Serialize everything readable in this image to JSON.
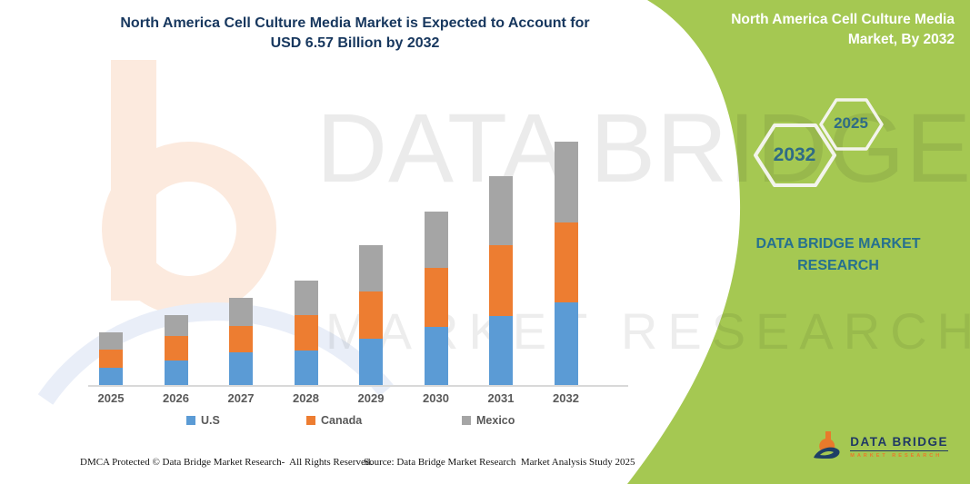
{
  "header": {
    "title": "North America Cell Culture Media Market is Expected to Account for USD 6.57 Billion by 2032"
  },
  "side_panel": {
    "title": "North America Cell Culture Media Market, By 2032",
    "hexagon_big": "2032",
    "hexagon_small": "2025",
    "brand_caption": "DATA BRIDGE MARKET RESEARCH",
    "panel_color": "#a5c852",
    "caption_color": "#26708f",
    "hexagon_text_color": "#2f6b85"
  },
  "watermark": {
    "line1": "DATA BRIDGE",
    "line2": "MARKET RESEARCH"
  },
  "chart_data": {
    "type": "bar",
    "stacked": true,
    "title": "North America Cell Culture Media Market is Expected to Account for USD 6.57 Billion by 2032",
    "unit": "USD Billion",
    "annotation": "USD 6.57 Billion by 2032",
    "categories": [
      "2025",
      "2026",
      "2027",
      "2028",
      "2029",
      "2030",
      "2031",
      "2032"
    ],
    "series": [
      {
        "name": "U.S",
        "color": "#5b9bd5",
        "values": [
          0.49,
          0.68,
          0.9,
          0.96,
          1.27,
          1.59,
          1.88,
          2.25
        ]
      },
      {
        "name": "Canada",
        "color": "#ed7d31",
        "values": [
          0.49,
          0.66,
          0.71,
          0.95,
          1.27,
          1.59,
          1.9,
          2.15
        ]
      },
      {
        "name": "Mexico",
        "color": "#a5a5a5",
        "values": [
          0.46,
          0.56,
          0.76,
          0.93,
          1.25,
          1.51,
          1.86,
          2.17
        ]
      }
    ],
    "totals": [
      1.44,
      1.9,
      2.37,
      2.84,
      3.79,
      4.69,
      5.64,
      6.57
    ],
    "ylim": [
      0,
      7
    ],
    "y_axis_visible": false,
    "gridlines": false,
    "legend_position": "bottom"
  },
  "footer": {
    "left": "DMCA Protected © Data Bridge Market Research-  All Rights Reserved.",
    "right": "Source: Data Bridge Market Research  Market Analysis Study 2025"
  },
  "logo": {
    "name": "DATA BRIDGE",
    "subtitle": "MARKET RESEARCH"
  }
}
